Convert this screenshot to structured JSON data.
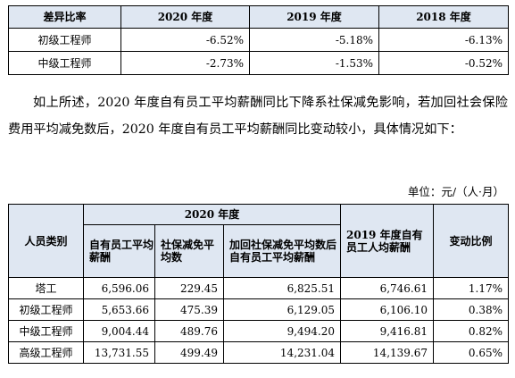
{
  "table1": {
    "headers": [
      "差异比率",
      "2020 年度",
      "2019 年度",
      "2018 年度"
    ],
    "rows": [
      {
        "label": "初级工程师",
        "values": [
          "-6.52%",
          "-5.18%",
          "-6.13%"
        ]
      },
      {
        "label": "中级工程师",
        "values": [
          "-2.73%",
          "-1.53%",
          "-0.52%"
        ]
      }
    ]
  },
  "paragraph": "如上所述，2020 年度自有员工平均薪酬同比下降系社保减免影响，若加回社会保险费用平均减免数后，2020 年度自有员工平均薪酬同比变动较小，具体情况如下：",
  "unit": "单位：元/（人·月）",
  "table2": {
    "col_person": "人员类别",
    "group_2020": "2020 年度",
    "col_own": "自有员工平均薪酬",
    "col_social": "社保减免平均数",
    "col_added": "加回社保减免平均数后自有员工平均薪酬",
    "col_2019": "2019 年度自有员工人均薪酬",
    "col_change": "变动比例",
    "rows": [
      {
        "label": "塔工",
        "own": "6,596.06",
        "social": "229.45",
        "added": "6,825.51",
        "y2019": "6,746.61",
        "change": "1.17%"
      },
      {
        "label": "初级工程师",
        "own": "5,653.66",
        "social": "475.39",
        "added": "6,129.05",
        "y2019": "6,106.10",
        "change": "0.38%"
      },
      {
        "label": "中级工程师",
        "own": "9,004.44",
        "social": "489.76",
        "added": "9,494.20",
        "y2019": "9,416.81",
        "change": "0.82%"
      },
      {
        "label": "高级工程师",
        "own": "13,731.55",
        "social": "499.49",
        "added": "14,231.04",
        "y2019": "14,139.67",
        "change": "0.65%"
      }
    ]
  }
}
